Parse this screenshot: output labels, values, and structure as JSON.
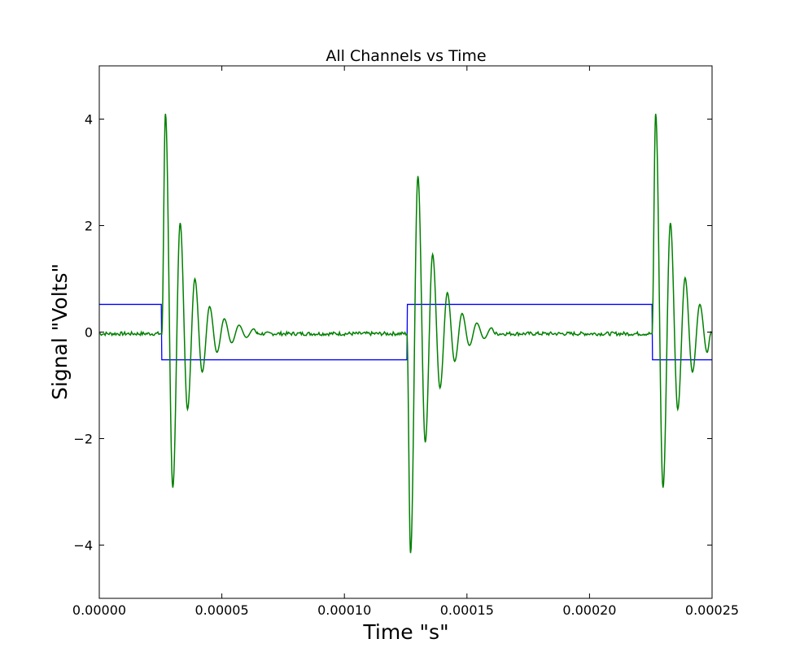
{
  "chart_data": {
    "type": "line",
    "title": "All Channels vs Time",
    "xlabel": "Time \"s\"",
    "ylabel": "Signal \"Volts\"",
    "xlim": [
      0,
      0.00025
    ],
    "ylim": [
      -5,
      5
    ],
    "grid": false,
    "legend": "none",
    "x_ticks": [
      {
        "value": 0,
        "label": "0.00000"
      },
      {
        "value": 5e-05,
        "label": "0.00005"
      },
      {
        "value": 0.0001,
        "label": "0.00010"
      },
      {
        "value": 0.00015,
        "label": "0.00015"
      },
      {
        "value": 0.0002,
        "label": "0.00020"
      },
      {
        "value": 0.00025,
        "label": "0.00025"
      }
    ],
    "y_ticks": [
      {
        "value": -4,
        "label": "−4"
      },
      {
        "value": -2,
        "label": "−2"
      },
      {
        "value": 0,
        "label": "0"
      },
      {
        "value": 2,
        "label": "2"
      },
      {
        "value": 4,
        "label": "4"
      }
    ],
    "series": [
      {
        "color": "#0000ff",
        "style": "square-wave",
        "x": [
          0,
          2.53e-05,
          2.55e-05,
          0.0001255,
          0.0001257,
          0.0002255,
          0.0002257,
          0.00025
        ],
        "y": [
          0.52,
          0.52,
          -0.52,
          -0.52,
          0.52,
          0.52,
          -0.52,
          -0.52
        ]
      },
      {
        "color": "#008000",
        "style": "ringing",
        "baseline": -0.03,
        "events": [
          {
            "t": 2.55e-05,
            "peaks": [
              {
                "x": 2.7e-05,
                "y": 4.1
              },
              {
                "x": 3e-05,
                "y": -2.92
              },
              {
                "x": 3.3e-05,
                "y": 2.05
              },
              {
                "x": 3.6e-05,
                "y": -1.45
              },
              {
                "x": 3.9e-05,
                "y": 1.0
              },
              {
                "x": 4.2e-05,
                "y": -0.75
              },
              {
                "x": 4.5e-05,
                "y": 0.48
              },
              {
                "x": 4.8e-05,
                "y": -0.38
              },
              {
                "x": 5.1e-05,
                "y": 0.25
              },
              {
                "x": 5.4e-05,
                "y": -0.2
              },
              {
                "x": 5.7e-05,
                "y": 0.13
              },
              {
                "x": 6e-05,
                "y": -0.1
              },
              {
                "x": 6.3e-05,
                "y": 0.06
              }
            ]
          },
          {
            "t": 0.0001255,
            "peaks": [
              {
                "x": 0.000127,
                "y": -4.15
              },
              {
                "x": 0.00013,
                "y": 2.93
              },
              {
                "x": 0.000133,
                "y": -2.07
              },
              {
                "x": 0.000136,
                "y": 1.46
              },
              {
                "x": 0.000139,
                "y": -1.05
              },
              {
                "x": 0.000142,
                "y": 0.74
              },
              {
                "x": 0.000145,
                "y": -0.55
              },
              {
                "x": 0.000148,
                "y": 0.35
              },
              {
                "x": 0.000151,
                "y": -0.25
              },
              {
                "x": 0.000154,
                "y": 0.17
              },
              {
                "x": 0.000157,
                "y": -0.12
              },
              {
                "x": 0.00016,
                "y": 0.08
              }
            ]
          },
          {
            "t": 0.0002255,
            "peaks": [
              {
                "x": 0.000227,
                "y": 4.1
              },
              {
                "x": 0.00023,
                "y": -2.92
              },
              {
                "x": 0.000233,
                "y": 2.05
              },
              {
                "x": 0.000236,
                "y": -1.45
              },
              {
                "x": 0.000239,
                "y": 1.02
              },
              {
                "x": 0.000242,
                "y": -0.75
              },
              {
                "x": 0.000245,
                "y": 0.52
              },
              {
                "x": 0.000248,
                "y": -0.38
              }
            ]
          }
        ]
      }
    ]
  }
}
